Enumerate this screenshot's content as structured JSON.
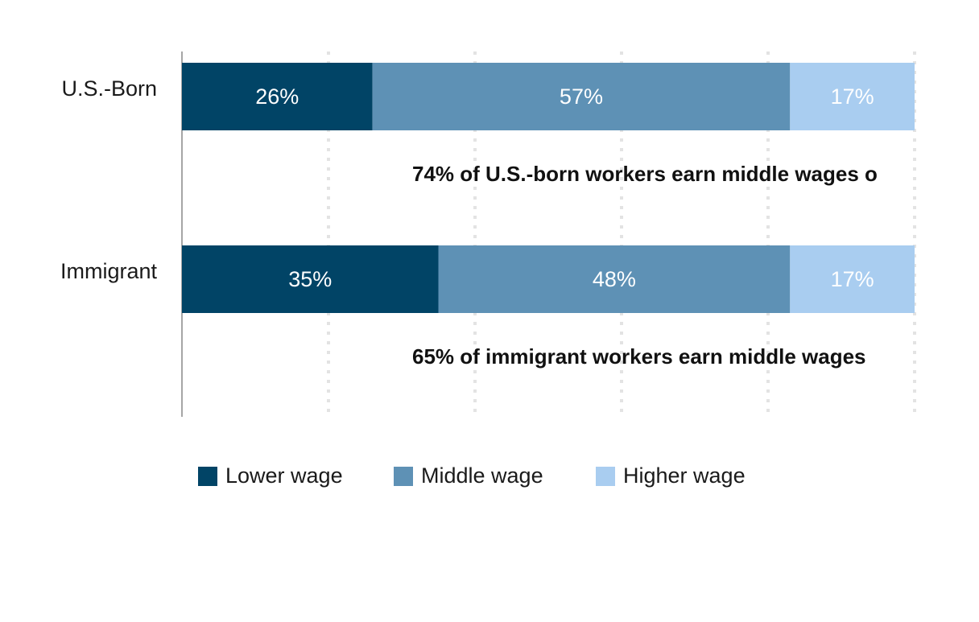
{
  "chart_data": {
    "type": "bar",
    "orientation": "horizontal",
    "stacked": true,
    "categories": [
      "U.S.-Born",
      "Immigrant"
    ],
    "series": [
      {
        "name": "Lower wage",
        "color": "#014466",
        "values": [
          26,
          35
        ],
        "labels": [
          "26%",
          "35%"
        ]
      },
      {
        "name": "Middle wage",
        "color": "#5e91b5",
        "values": [
          57,
          48
        ],
        "labels": [
          "57%",
          "48%"
        ]
      },
      {
        "name": "Higher wage",
        "color": "#a9cdf0",
        "values": [
          17,
          17
        ],
        "labels": [
          "17%",
          "17%"
        ]
      }
    ],
    "annotations": [
      "74% of U.S.-born workers earn middle wages o",
      "65% of immigrant workers earn middle wages"
    ],
    "xlim": [
      0,
      100
    ],
    "grid": true,
    "legend_position": "bottom",
    "title": "",
    "xlabel": "",
    "ylabel": ""
  }
}
